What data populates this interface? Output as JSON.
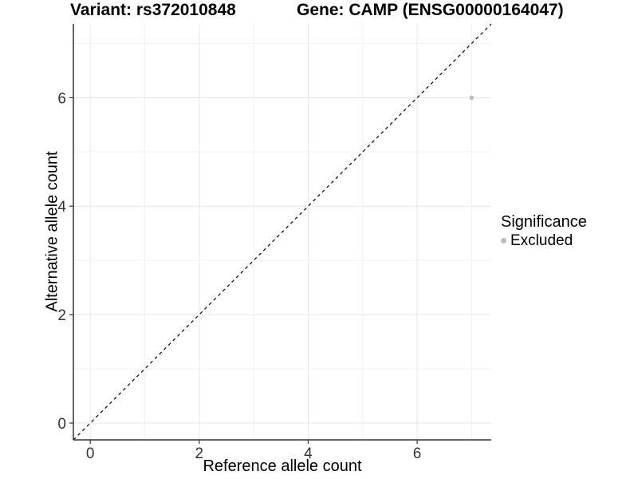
{
  "chart_data": {
    "type": "scatter",
    "title_left": "Variant: rs372010848",
    "title_right": "Gene: CAMP (ENSG00000164047)",
    "xlabel": "Reference allele count",
    "ylabel": "Alternative allele count",
    "xlim": [
      -0.31,
      7.36
    ],
    "ylim": [
      -0.31,
      7.36
    ],
    "xticks": [
      0,
      2,
      4,
      6
    ],
    "yticks": [
      0,
      2,
      4,
      6
    ],
    "xticks_minor": [
      1,
      3,
      5,
      7
    ],
    "yticks_minor": [
      1,
      3,
      5,
      7
    ],
    "grid": true,
    "series": [
      {
        "name": "Excluded",
        "color": "#bdbdbd",
        "points": [
          {
            "x": 7,
            "y": 6
          }
        ]
      }
    ],
    "reference_line": {
      "type": "identity y=x",
      "style": "dashed",
      "color": "#000000"
    },
    "legend": {
      "position": "right",
      "title": "Significance",
      "items": [
        {
          "label": "Excluded",
          "color": "#bdbdbd",
          "marker": "circle"
        }
      ]
    },
    "colors": {
      "background": "#ffffff",
      "grid_major": "#e6e6e6",
      "grid_minor": "#f1f1f1",
      "axis_line": "#333333",
      "tick_label": "#333333",
      "text": "#000000"
    }
  }
}
